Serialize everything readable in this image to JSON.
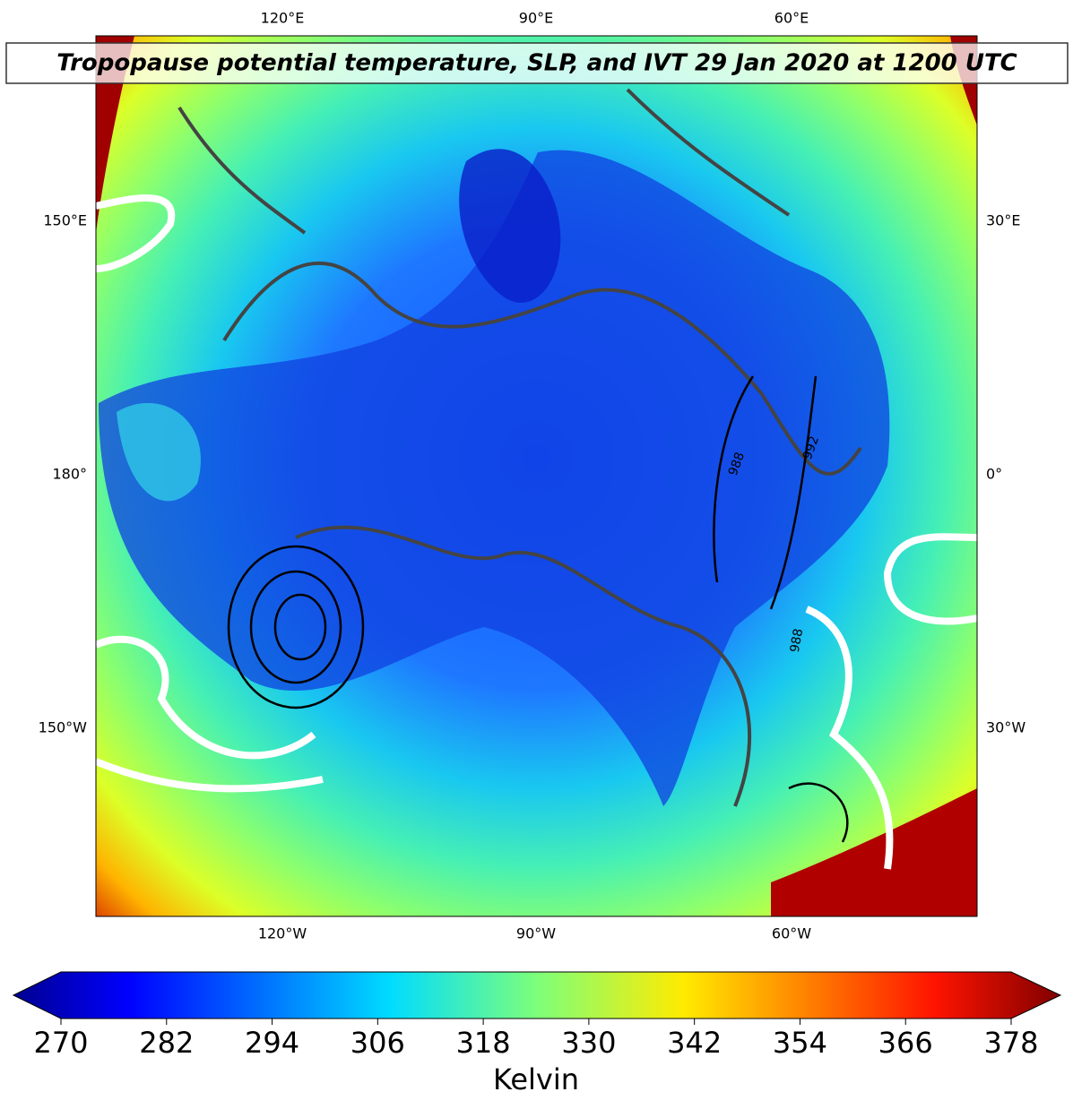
{
  "title": "Tropopause potential temperature, SLP, and IVT 29 Jan 2020 at 1200 UTC",
  "map": {
    "top_labels": [
      "120°E",
      "90°E",
      "60°E"
    ],
    "bottom_labels": [
      "120°W",
      "90°W",
      "60°W"
    ],
    "left_labels": [
      "150°E",
      "180°",
      "150°W"
    ],
    "right_labels": [
      "30°E",
      "0°",
      "30°W"
    ],
    "contour_labels": [
      "988",
      "992",
      "988"
    ]
  },
  "colorbar": {
    "label": "Kelvin",
    "lim": [
      270,
      378
    ],
    "ticks": [
      270,
      282,
      294,
      306,
      318,
      330,
      342,
      354,
      366,
      378
    ]
  }
}
